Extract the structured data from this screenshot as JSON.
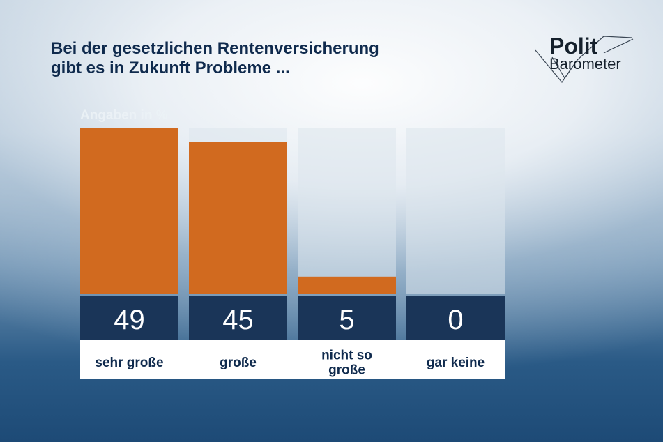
{
  "title_lines": [
    "Bei der gesetzlichen Rentenversicherung",
    "gibt es in Zukunft Probleme ..."
  ],
  "logo": {
    "line1": "Polit",
    "line2": "Barometer"
  },
  "colors": {
    "bar": "#d16a1f",
    "track": "#dde5ec",
    "value_bg": "#1a3558",
    "value_text": "#ffffff",
    "label_text": "#0f2a4d"
  },
  "chart_data": {
    "type": "bar",
    "unit_label": "Angaben in %",
    "categories": [
      [
        "sehr große"
      ],
      [
        "große"
      ],
      [
        "nicht so",
        "große"
      ],
      [
        "gar keine"
      ]
    ],
    "values": [
      49,
      45,
      5,
      0
    ],
    "ylim": [
      0,
      49
    ]
  }
}
